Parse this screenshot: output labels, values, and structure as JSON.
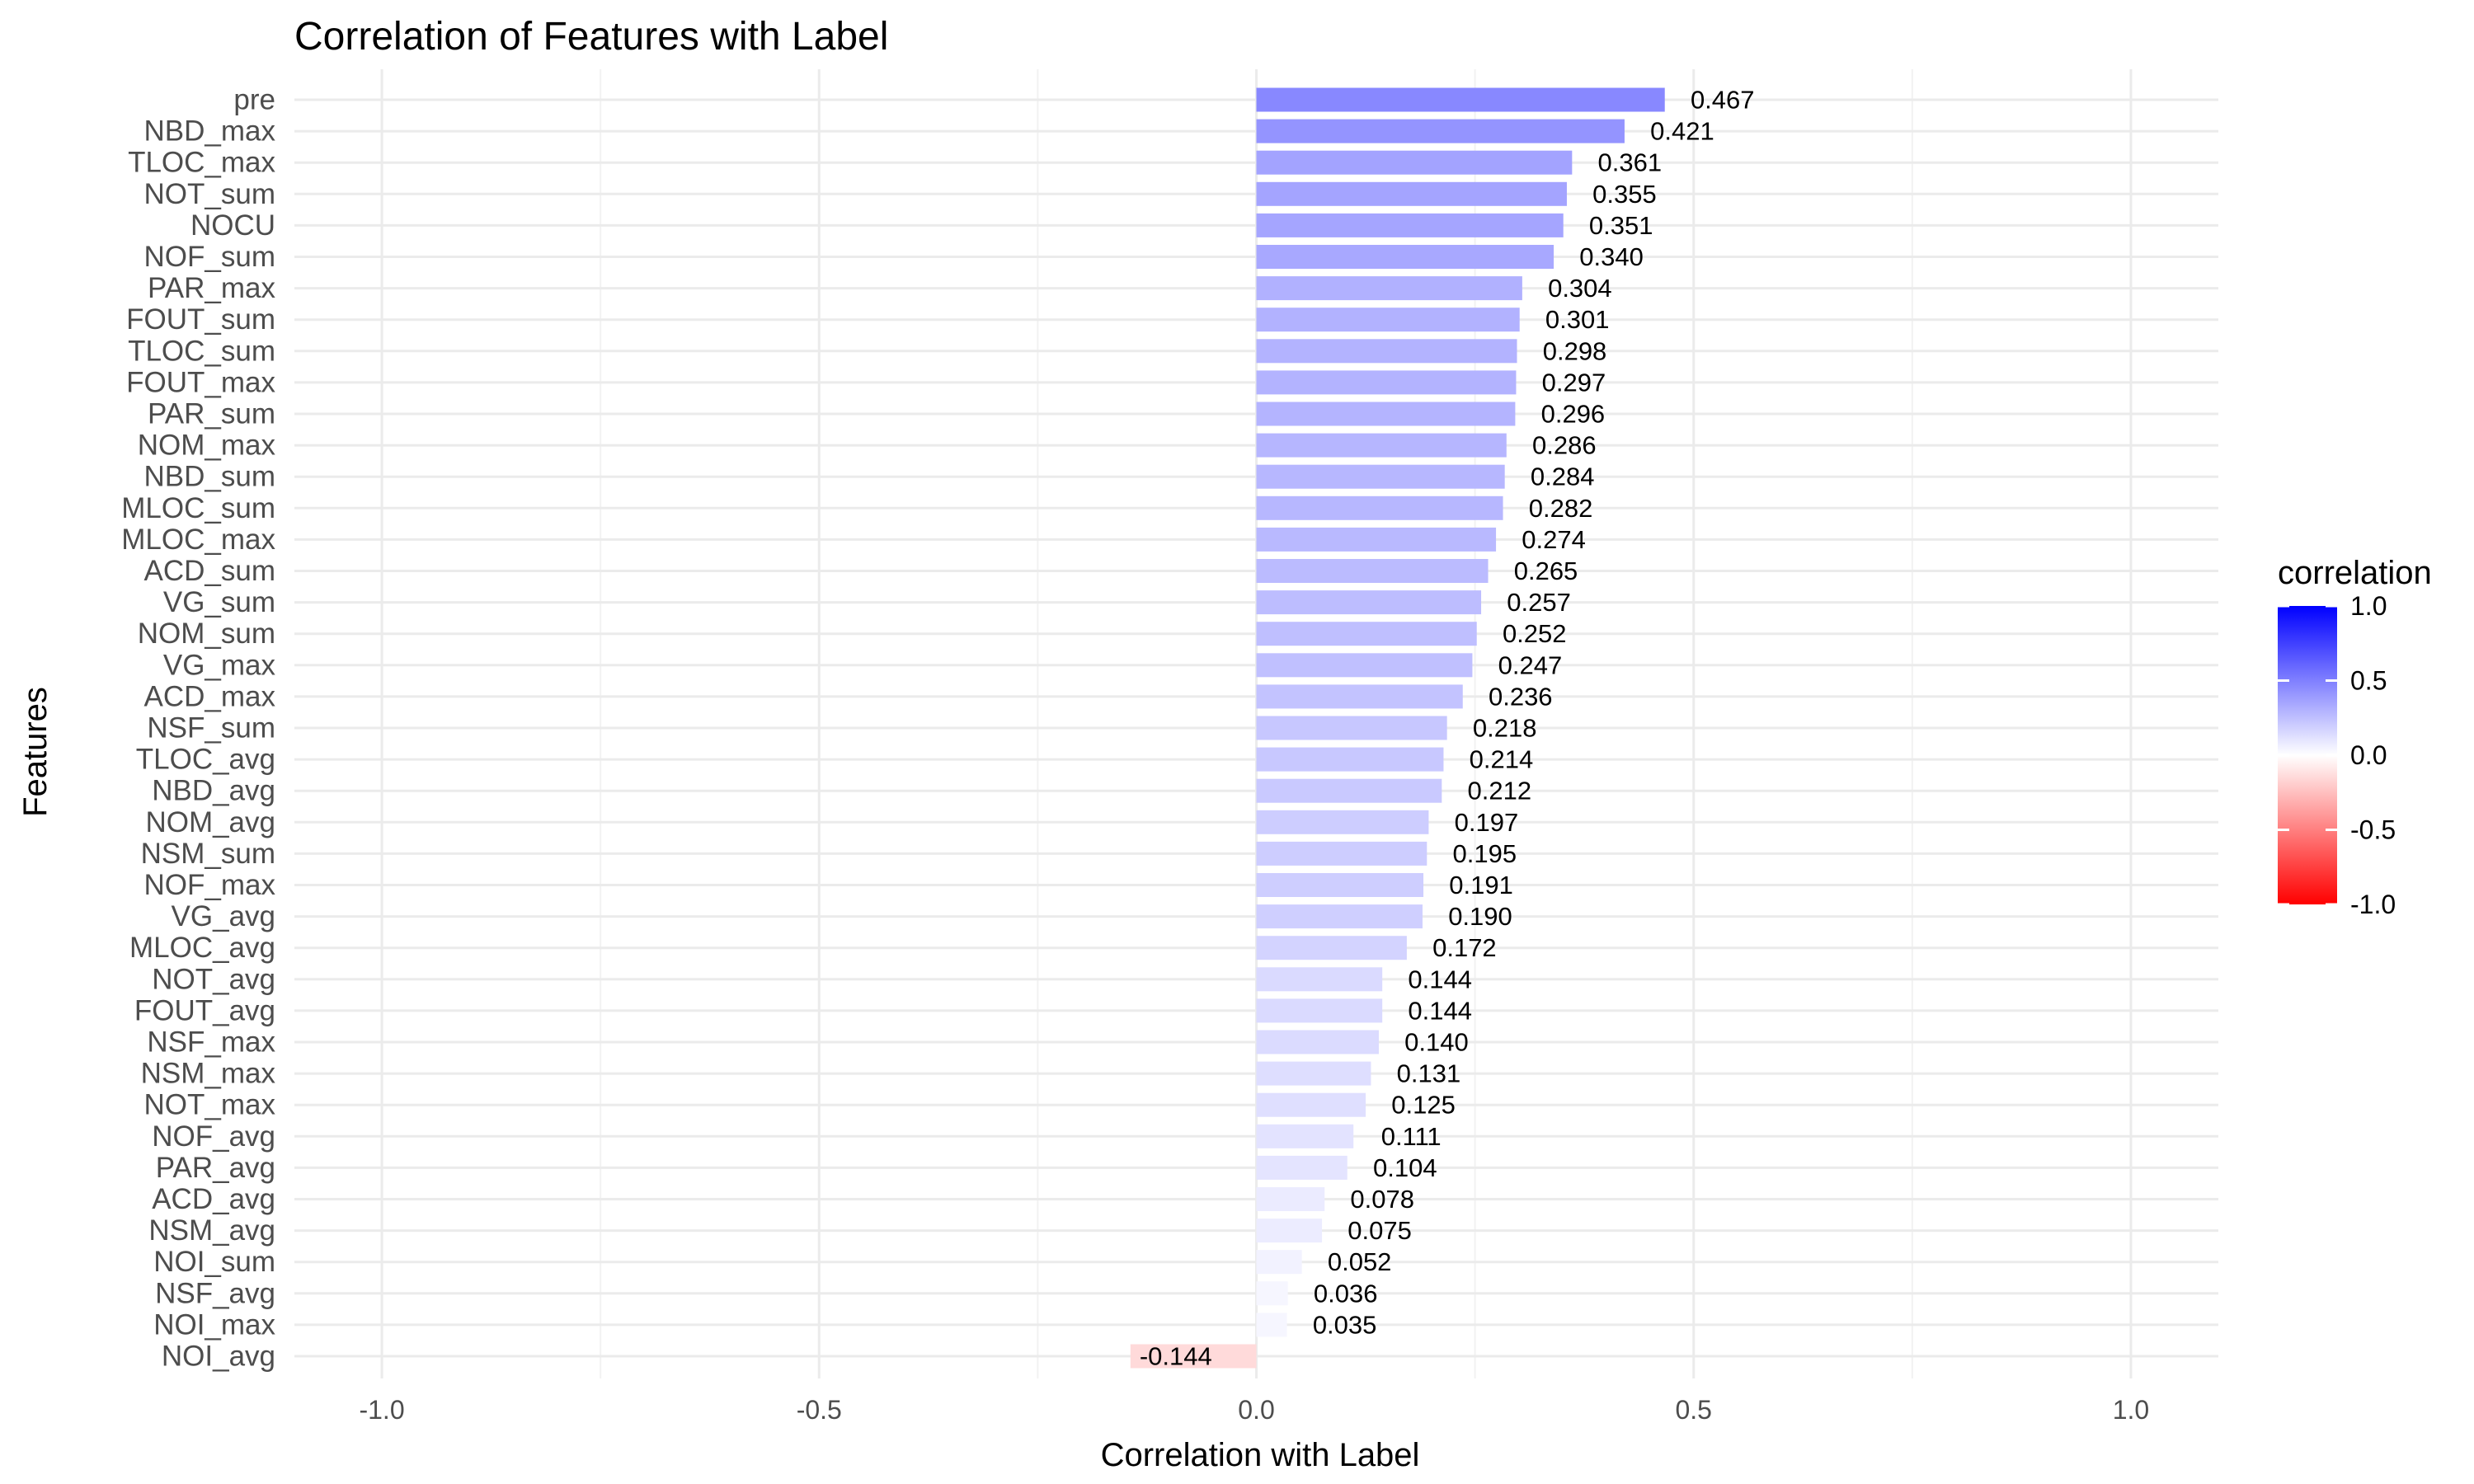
{
  "chart_data": {
    "type": "bar",
    "orientation": "horizontal",
    "title": "Correlation of Features with Label",
    "xlabel": "Correlation with Label",
    "ylabel": "Features",
    "xlim": [
      -1.1,
      1.1
    ],
    "xticks": [
      "-1.0",
      "-0.5",
      "0.0",
      "0.5",
      "1.0"
    ],
    "grid": true,
    "legend": {
      "title": "correlation",
      "position": "right",
      "ticks": [
        "1.0",
        "0.5",
        "0.0",
        "-0.5",
        "-1.0"
      ],
      "low_color": "#ff0000",
      "mid_color": "#ffffff",
      "high_color": "#0000ff"
    },
    "categories": [
      "pre",
      "NBD_max",
      "TLOC_max",
      "NOT_sum",
      "NOCU",
      "NOF_sum",
      "PAR_max",
      "FOUT_sum",
      "TLOC_sum",
      "FOUT_max",
      "PAR_sum",
      "NOM_max",
      "NBD_sum",
      "MLOC_sum",
      "MLOC_max",
      "ACD_sum",
      "VG_sum",
      "NOM_sum",
      "VG_max",
      "ACD_max",
      "NSF_sum",
      "TLOC_avg",
      "NBD_avg",
      "NOM_avg",
      "NSM_sum",
      "NOF_max",
      "VG_avg",
      "MLOC_avg",
      "NOT_avg",
      "FOUT_avg",
      "NSF_max",
      "NSM_max",
      "NOT_max",
      "NOF_avg",
      "PAR_avg",
      "ACD_avg",
      "NSM_avg",
      "NOI_sum",
      "NSF_avg",
      "NOI_max",
      "NOI_avg"
    ],
    "values": [
      0.467,
      0.421,
      0.361,
      0.355,
      0.351,
      0.34,
      0.304,
      0.301,
      0.298,
      0.297,
      0.296,
      0.286,
      0.284,
      0.282,
      0.274,
      0.265,
      0.257,
      0.252,
      0.247,
      0.236,
      0.218,
      0.214,
      0.212,
      0.197,
      0.195,
      0.191,
      0.19,
      0.172,
      0.144,
      0.144,
      0.14,
      0.131,
      0.125,
      0.111,
      0.104,
      0.078,
      0.075,
      0.052,
      0.036,
      0.035,
      -0.144
    ],
    "value_labels": [
      "0.467",
      "0.421",
      "0.361",
      "0.355",
      "0.351",
      "0.340",
      "0.304",
      "0.301",
      "0.298",
      "0.297",
      "0.296",
      "0.286",
      "0.284",
      "0.282",
      "0.274",
      "0.265",
      "0.257",
      "0.252",
      "0.247",
      "0.236",
      "0.218",
      "0.214",
      "0.212",
      "0.197",
      "0.195",
      "0.191",
      "0.190",
      "0.172",
      "0.144",
      "0.144",
      "0.140",
      "0.131",
      "0.125",
      "0.111",
      "0.104",
      "0.078",
      "0.075",
      "0.052",
      "0.036",
      "0.035",
      "-0.144"
    ]
  }
}
